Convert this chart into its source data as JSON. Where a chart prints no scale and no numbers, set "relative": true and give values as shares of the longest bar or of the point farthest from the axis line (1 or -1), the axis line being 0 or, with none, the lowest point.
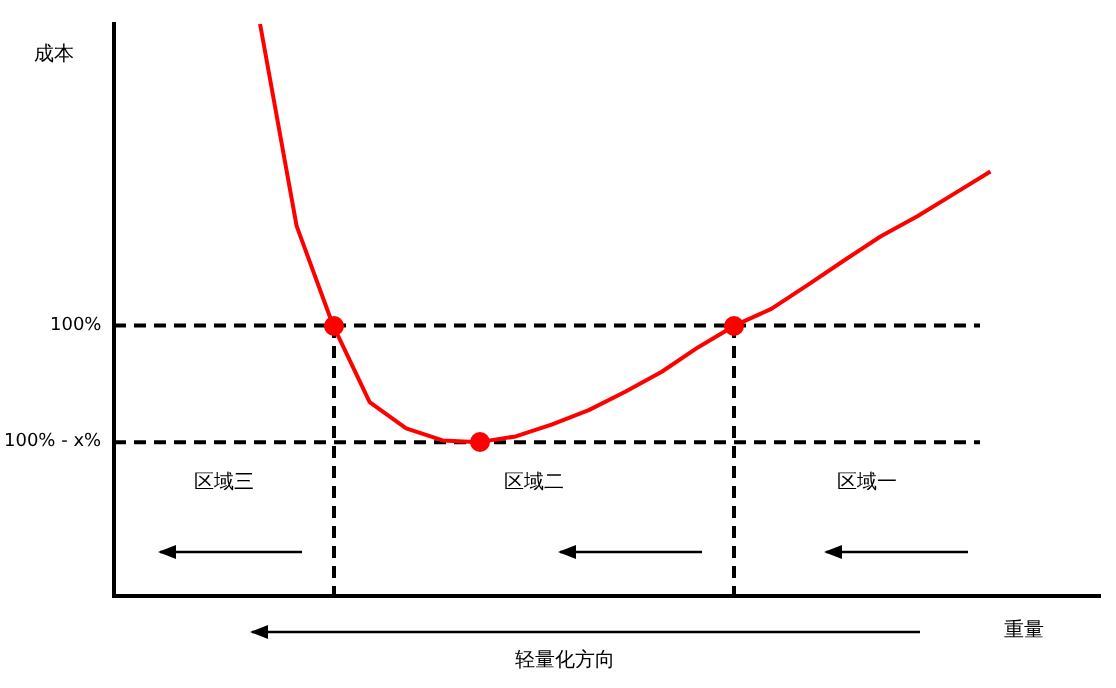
{
  "chart_data": {
    "type": "line",
    "categories": [
      null,
      null,
      null,
      null,
      null,
      null,
      null,
      null,
      null,
      null,
      null,
      null,
      null,
      null,
      null,
      null,
      null,
      null,
      null,
      null,
      null,
      null,
      null,
      null,
      null,
      null,
      null,
      null
    ],
    "xlabel": "重量",
    "ylabel": "成本",
    "grid": false,
    "legend": false,
    "tick_labels": false,
    "marker": "none",
    "relative": true,
    "series": [
      {
        "color": "#ff0000",
        "values": [
          null,
          null,
          null,
          null,
          1.0,
          0.647,
          0.473,
          0.339,
          0.293,
          0.272,
          0.269,
          0.279,
          0.3,
          0.325,
          0.357,
          0.392,
          0.435,
          0.473,
          0.502,
          0.544,
          0.587,
          0.629,
          0.664,
          0.703,
          0.742,
          null,
          null,
          null
        ]
      }
    ],
    "ref_lines": [
      {
        "axis": "y",
        "value": 0.473,
        "color": "#000000",
        "line_style": "dashed"
      },
      {
        "axis": "y",
        "value": 0.269,
        "color": "#000000",
        "line_style": "dashed"
      }
    ],
    "annotations": [
      "区域三",
      "区域二",
      "区域一",
      "轻量化方向",
      "100%",
      "100% - x%"
    ]
  }
}
